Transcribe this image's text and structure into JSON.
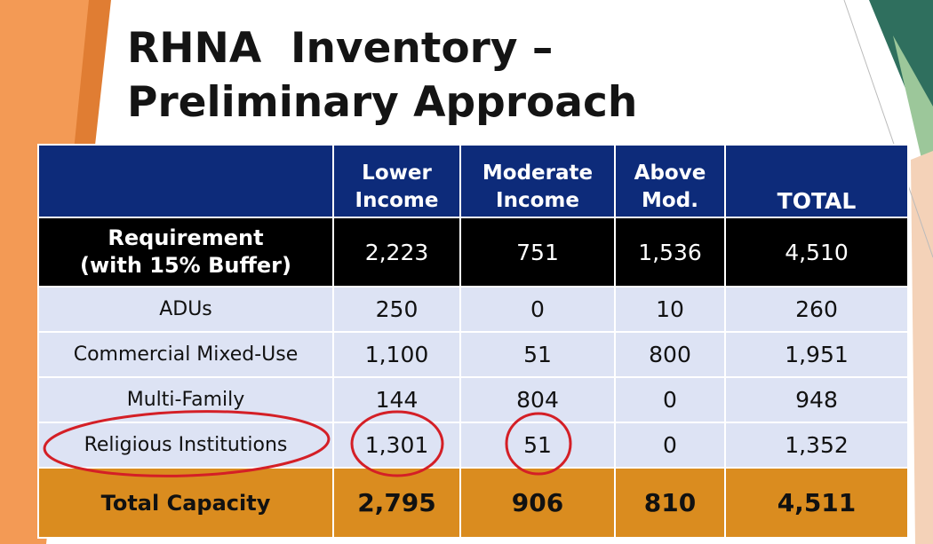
{
  "title": {
    "line1": "RHNA  Inventory –",
    "line2": "Preliminary Approach"
  },
  "table": {
    "columns": [
      {
        "line1": "Lower",
        "line2": "Income"
      },
      {
        "line1": "Moderate",
        "line2": "Income"
      },
      {
        "line1": "Above",
        "line2": "Mod."
      },
      {
        "line1": "",
        "line2": "TOTAL"
      }
    ],
    "requirement": {
      "label_line1": "Requirement",
      "label_line2": "(with 15% Buffer)",
      "values": [
        "2,223",
        "751",
        "1,536",
        "4,510"
      ]
    },
    "rows": [
      {
        "label": "ADUs",
        "values": [
          "250",
          "0",
          "10",
          "260"
        ]
      },
      {
        "label": "Commercial Mixed-Use",
        "values": [
          "1,100",
          "51",
          "800",
          "1,951"
        ]
      },
      {
        "label": "Multi-Family",
        "values": [
          "144",
          "804",
          "0",
          "948"
        ]
      },
      {
        "label": "Religious Institutions",
        "values": [
          "1,301",
          "51",
          "0",
          "1,352"
        ]
      }
    ],
    "total_capacity": {
      "label": "Total Capacity",
      "values": [
        "2,795",
        "906",
        "810",
        "4,511"
      ]
    }
  },
  "annotations": {
    "circle_color": "#d41f26",
    "circled_items": [
      "religious-institutions-label",
      "lower-income-religious",
      "moderate-income-religious"
    ]
  },
  "colors": {
    "header_bg": "#0d2b7a",
    "requirement_bg": "#000000",
    "data_row_bg": "#dde3f4",
    "total_row_bg": "#da8c1f",
    "accent_orange": "#f08a3c",
    "accent_green": "#2f6f5e"
  }
}
